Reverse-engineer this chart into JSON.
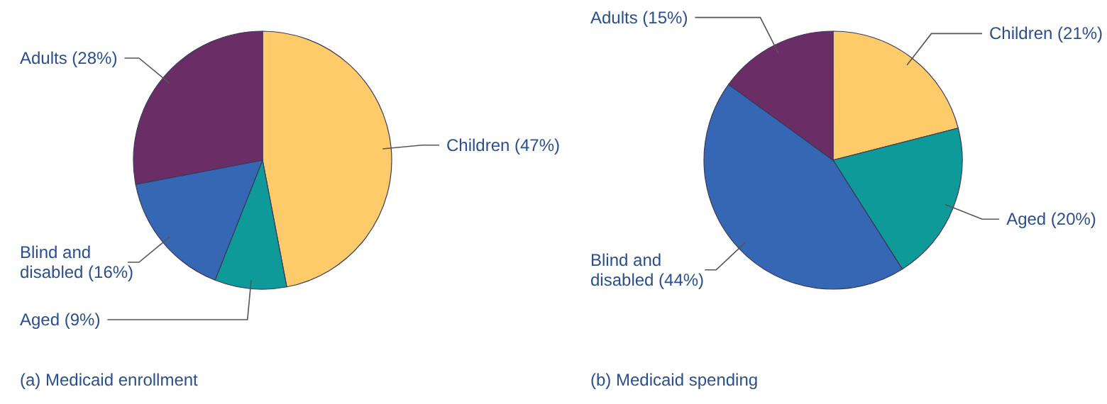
{
  "chart_data": [
    {
      "type": "pie",
      "title": "(a) Medicaid enrollment",
      "categories": [
        "Children (47%)",
        "Aged (9%)",
        "Blind and disabled (16%)",
        "Adults (28%)"
      ],
      "values": [
        47,
        9,
        16,
        28
      ],
      "colors": [
        "#fecb6b",
        "#0f9a9a",
        "#3567b4",
        "#6b2d66"
      ]
    },
    {
      "type": "pie",
      "title": "(b) Medicaid spending",
      "categories": [
        "Children (21%)",
        "Aged (20%)",
        "Blind and disabled (44%)",
        "Adults (15%)"
      ],
      "values": [
        21,
        20,
        44,
        15
      ],
      "colors": [
        "#fecb6b",
        "#0f9a9a",
        "#3567b4",
        "#6b2d66"
      ]
    }
  ]
}
